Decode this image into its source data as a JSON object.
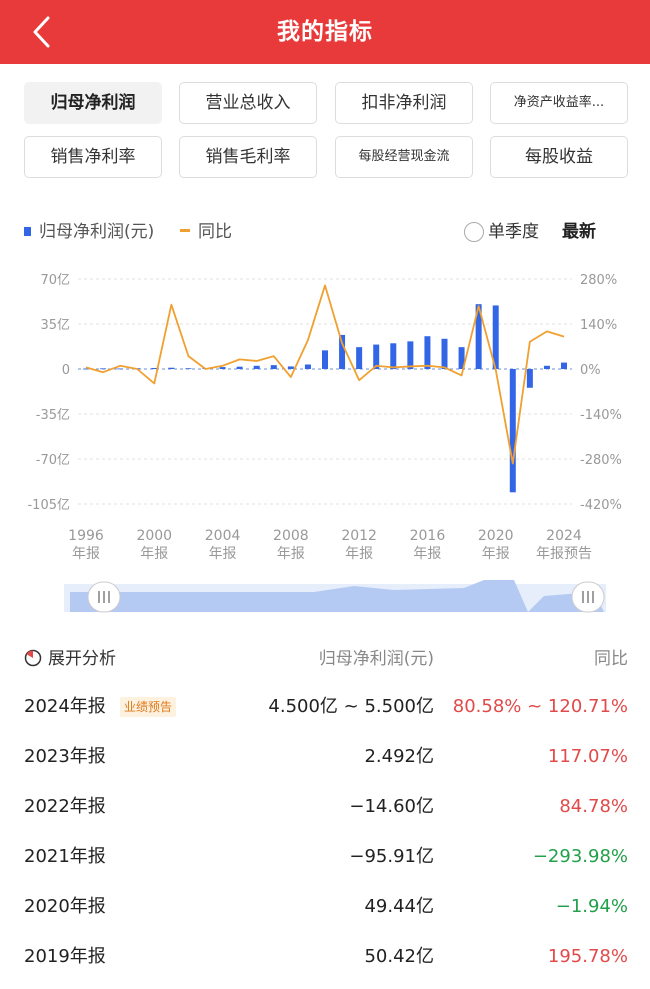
{
  "header": {
    "title": "我的指标"
  },
  "tabs": [
    {
      "label": "归母净利润",
      "active": true
    },
    {
      "label": "营业总收入",
      "active": false
    },
    {
      "label": "扣非净利润",
      "active": false
    },
    {
      "label": "净资产收益率...",
      "active": false
    },
    {
      "label": "销售净利率",
      "active": false
    },
    {
      "label": "销售毛利率",
      "active": false
    },
    {
      "label": "每股经营现金流",
      "active": false
    },
    {
      "label": "每股收益",
      "active": false
    }
  ],
  "legend": {
    "bar_label": "归母净利润(元)",
    "line_label": "同比",
    "quarter_toggle": "单季度",
    "latest": "最新"
  },
  "colors": {
    "header": "#e83a3a",
    "bar": "#3366e6",
    "line": "#f0a030",
    "positive": "#e24a4a",
    "negative": "#22a04a"
  },
  "chart_data": {
    "type": "bar",
    "title": "",
    "xlabel": "",
    "ylabel": "",
    "left_axis": {
      "ticks": [
        "70亿",
        "35亿",
        "0",
        "-35亿",
        "-70亿",
        "-105亿"
      ],
      "ylim": [
        -105,
        70
      ],
      "unit": "亿"
    },
    "right_axis": {
      "ticks": [
        "280%",
        "140%",
        "0%",
        "-140%",
        "-280%",
        "-420%"
      ],
      "ylim": [
        -420,
        280
      ]
    },
    "x_ticks": [
      {
        "year": "1996",
        "sub": "年报"
      },
      {
        "year": "2000",
        "sub": "年报"
      },
      {
        "year": "2004",
        "sub": "年报"
      },
      {
        "year": "2008",
        "sub": "年报"
      },
      {
        "year": "2012",
        "sub": "年报"
      },
      {
        "year": "2016",
        "sub": "年报"
      },
      {
        "year": "2020",
        "sub": "年报"
      },
      {
        "year": "2024",
        "sub": "年报预告"
      }
    ],
    "years": [
      "1996",
      "1997",
      "1998",
      "1999",
      "2000",
      "2001",
      "2002",
      "2003",
      "2004",
      "2005",
      "2006",
      "2007",
      "2008",
      "2009",
      "2010",
      "2011",
      "2012",
      "2013",
      "2014",
      "2015",
      "2016",
      "2017",
      "2018",
      "2019",
      "2020",
      "2021",
      "2022",
      "2023",
      "2024"
    ],
    "series": [
      {
        "name": "归母净利润(元)",
        "type": "bar",
        "unit": "亿",
        "values": [
          0.3,
          0.5,
          0.4,
          0.6,
          0.8,
          1.0,
          0.6,
          0.8,
          1.5,
          1.8,
          2.5,
          3.0,
          2.0,
          3.5,
          14.5,
          26.5,
          17.0,
          19.0,
          20.0,
          21.5,
          25.5,
          23.5,
          17.0,
          50.42,
          49.44,
          -95.91,
          -14.6,
          2.492,
          5.0
        ]
      },
      {
        "name": "同比",
        "type": "line",
        "unit": "%",
        "values": [
          5,
          -10,
          10,
          0,
          -45,
          200,
          40,
          0,
          10,
          30,
          25,
          40,
          -25,
          90,
          260,
          80,
          -35,
          10,
          5,
          8,
          10,
          5,
          -20,
          195.78,
          -1.94,
          -293.98,
          84.78,
          117.07,
          100.65
        ]
      }
    ]
  },
  "table": {
    "expand_label": "展开分析",
    "col_value": "归母净利润(元)",
    "col_yoy": "同比",
    "rows": [
      {
        "period": "2024年报",
        "badge": "业绩预告",
        "value": "4.500亿 ~ 5.500亿",
        "yoy": "80.58% ~ 120.71%",
        "sign": "pos"
      },
      {
        "period": "2023年报",
        "value": "2.492亿",
        "yoy": "117.07%",
        "sign": "pos"
      },
      {
        "period": "2022年报",
        "value": "−14.60亿",
        "yoy": "84.78%",
        "sign": "pos"
      },
      {
        "period": "2021年报",
        "value": "−95.91亿",
        "yoy": "−293.98%",
        "sign": "neg"
      },
      {
        "period": "2020年报",
        "value": "49.44亿",
        "yoy": "−1.94%",
        "sign": "neg"
      },
      {
        "period": "2019年报",
        "value": "50.42亿",
        "yoy": "195.78%",
        "sign": "pos"
      }
    ]
  }
}
